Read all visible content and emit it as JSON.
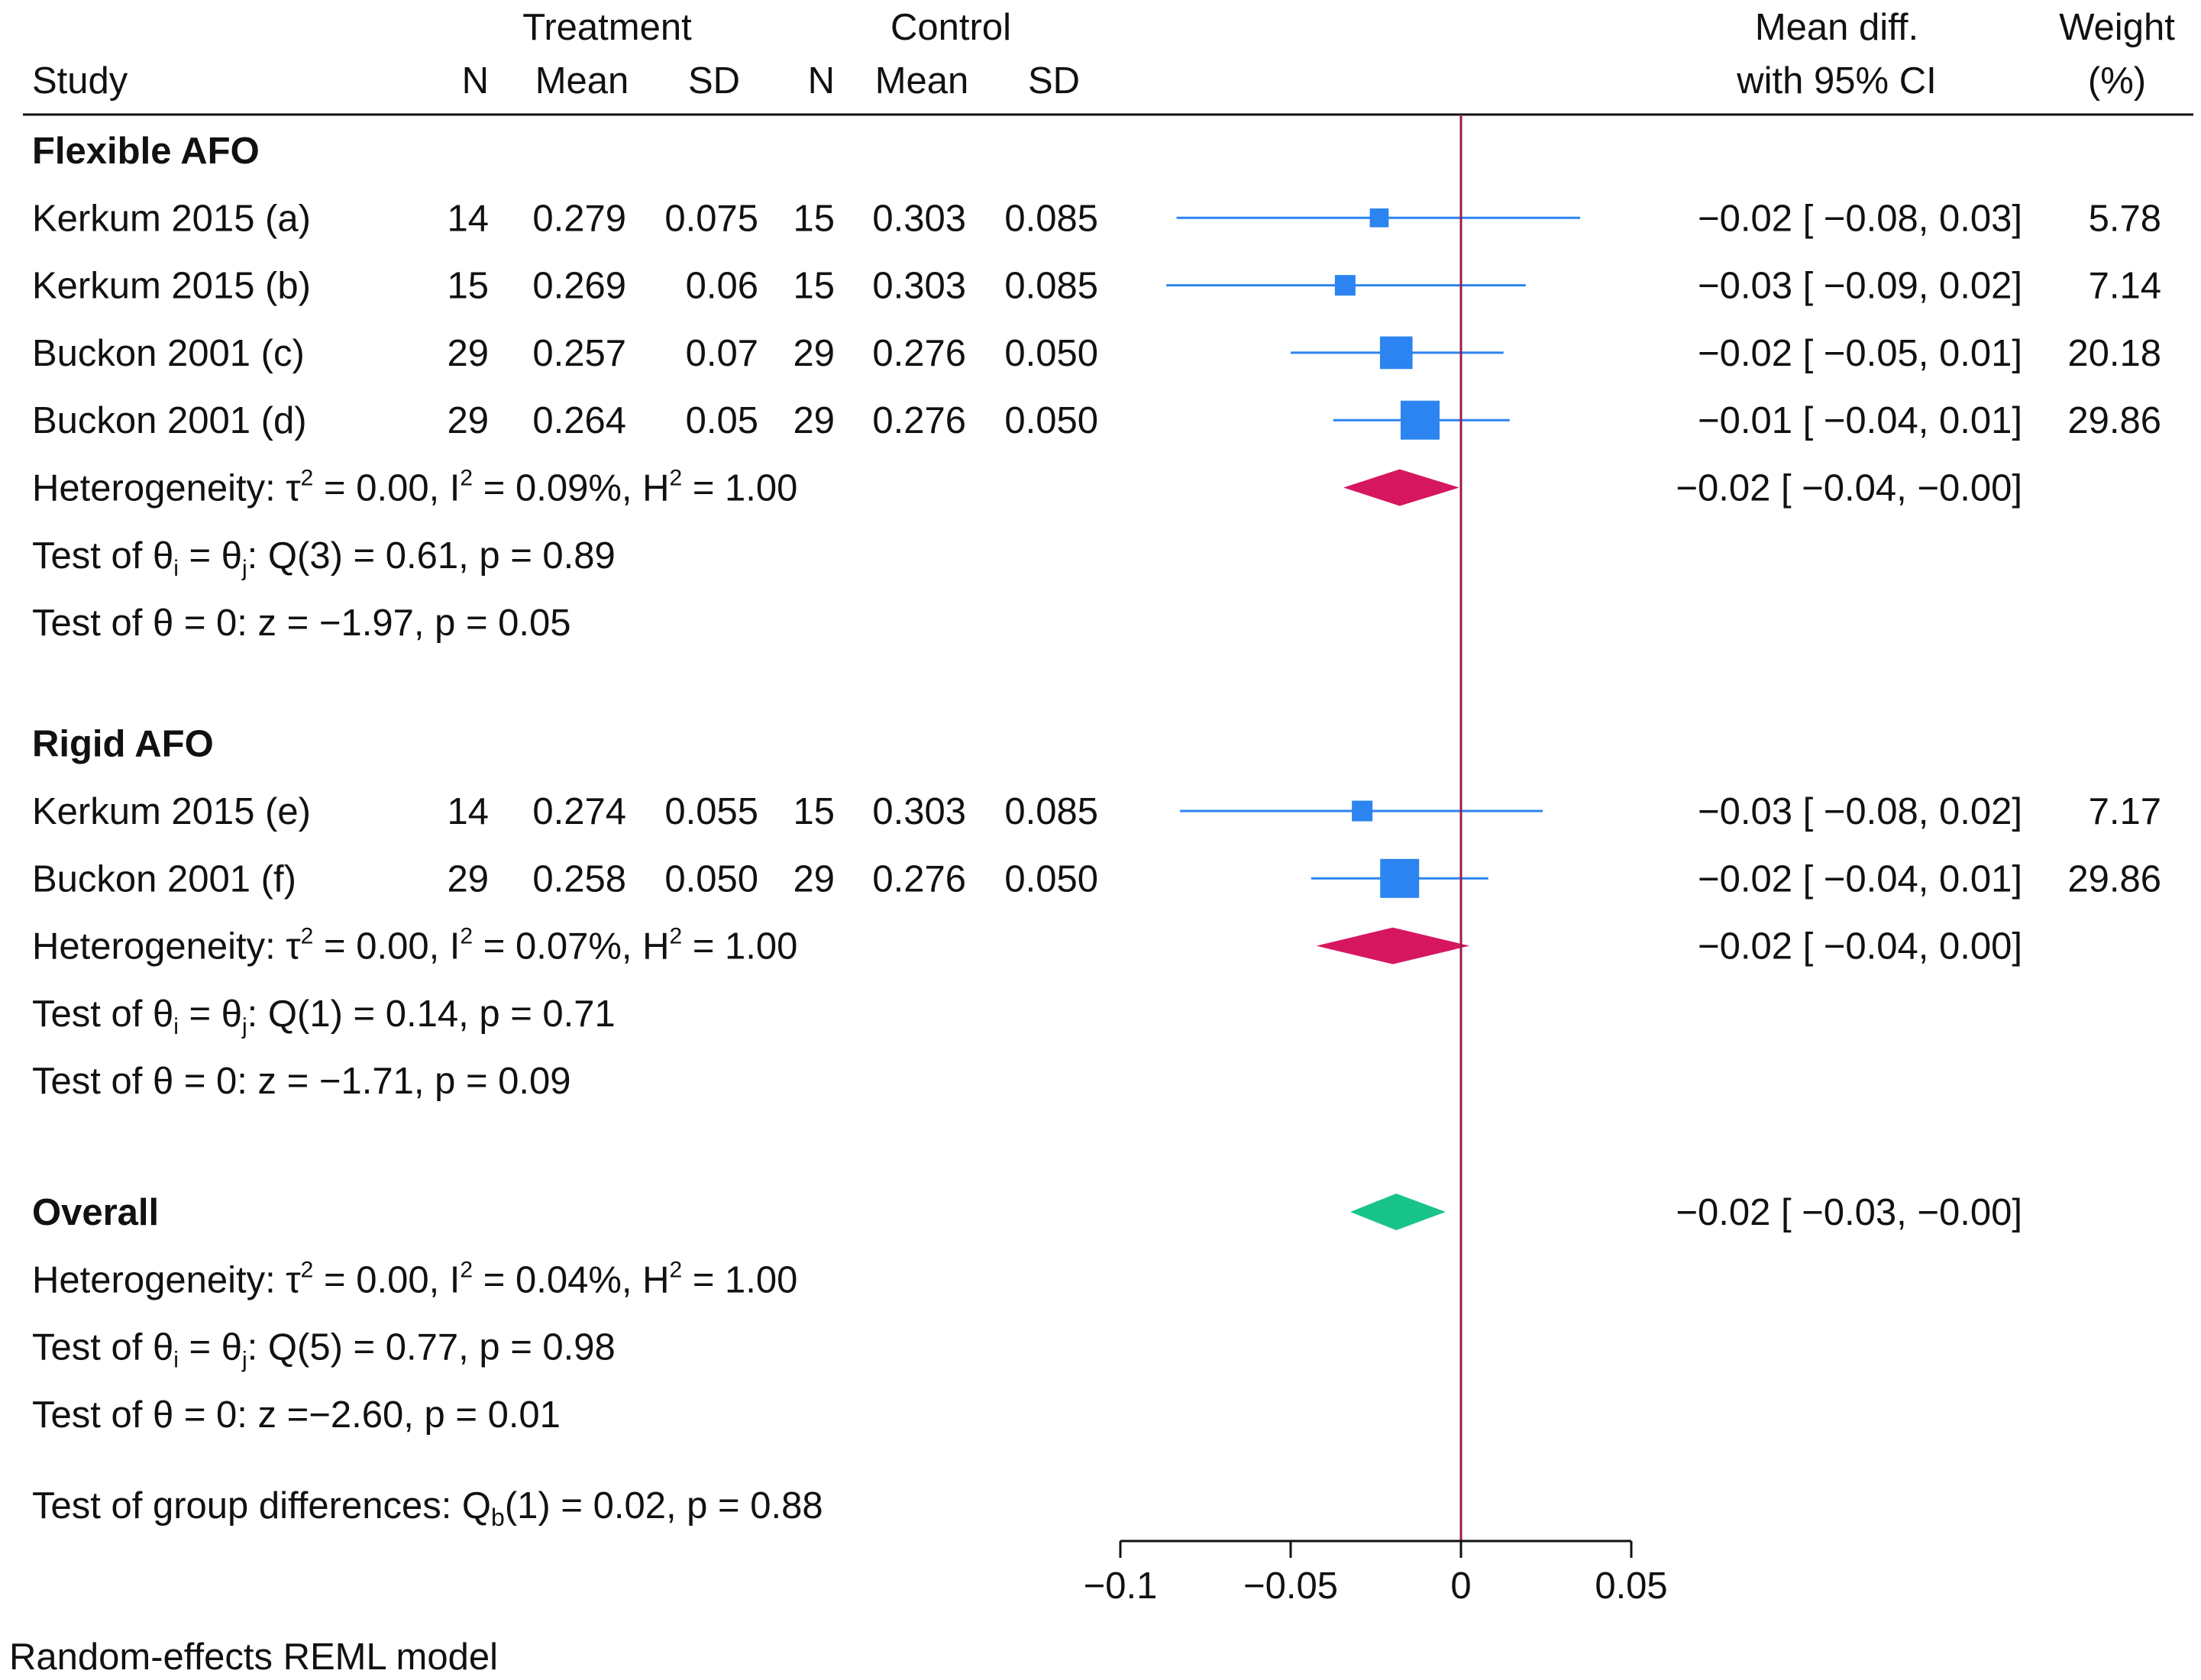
{
  "header": {
    "treatment": "Treatment",
    "control": "Control",
    "study": "Study",
    "n": "N",
    "mean": "Mean",
    "sd": "SD",
    "mean_diff_line1": "Mean diff.",
    "mean_diff_line2": "with 95% CI",
    "weight_line1": "Weight",
    "weight_line2": "(%)"
  },
  "footnote": "Random-effects REML model",
  "group_difference_test": {
    "prefix": "Test of group differences: Q",
    "sub": "b",
    "suffix": "(1) = 0.02, p = 0.88"
  },
  "colors": {
    "study_marker": "#2b84f0",
    "subgroup_diamond": "#d6175f",
    "overall_diamond": "#18c48a",
    "null_line": "#9b1b4a"
  },
  "chart_data": {
    "type": "forest",
    "x_axis": {
      "ticks": [
        -0.1,
        -0.05,
        0,
        0.05
      ],
      "tick_labels": [
        "−0.1",
        "−0.05",
        "0",
        "0.05"
      ],
      "xlim": [
        -0.1,
        0.05
      ],
      "null_value": 0
    },
    "groups": [
      {
        "name": "Flexible AFO",
        "studies": [
          {
            "label": "Kerkum 2015 (a)",
            "t_n": "14",
            "t_mean": "0.279",
            "t_sd": "0.075",
            "c_n": "15",
            "c_mean": "0.303",
            "c_sd": "0.085",
            "est": -0.024,
            "lo": -0.0835,
            "hi": 0.035,
            "weight": 5.78,
            "ci_text": "−0.02 [ −0.08,    0.03]",
            "weight_text": "5.78"
          },
          {
            "label": "Kerkum 2015 (b)",
            "t_n": "15",
            "t_mean": "0.269",
            "t_sd": "0.06",
            "c_n": "15",
            "c_mean": "0.303",
            "c_sd": "0.085",
            "est": -0.034,
            "lo": -0.0865,
            "hi": 0.019,
            "weight": 7.14,
            "ci_text": "−0.03 [ −0.09,    0.02]",
            "weight_text": "7.14"
          },
          {
            "label": "Buckon 2001 (c)",
            "t_n": "29",
            "t_mean": "0.257",
            "t_sd": "0.07",
            "c_n": "29",
            "c_mean": "0.276",
            "c_sd": "0.050",
            "est": -0.019,
            "lo": -0.05,
            "hi": 0.0125,
            "weight": 20.18,
            "ci_text": "−0.02 [ −0.05,    0.01]",
            "weight_text": "20.18"
          },
          {
            "label": "Buckon 2001 (d)",
            "t_n": "29",
            "t_mean": "0.264",
            "t_sd": "0.05",
            "c_n": "29",
            "c_mean": "0.276",
            "c_sd": "0.050",
            "est": -0.012,
            "lo": -0.0375,
            "hi": 0.0143,
            "weight": 29.86,
            "ci_text": "−0.01 [ −0.04,    0.01]",
            "weight_text": "29.86"
          }
        ],
        "pooled": {
          "est": -0.018,
          "lo": -0.0345,
          "hi": -0.0005,
          "ci_text": "−0.02 [ −0.04,  −0.00]"
        },
        "stats": [
          {
            "kind": "het",
            "tau": "0.00",
            "i2": "0.09%",
            "h2": "1.00"
          },
          {
            "kind": "q",
            "df_stat": "(3) = 0.61, p = 0.89"
          },
          {
            "kind": "z",
            "text": "Test of θ = 0: z = −1.97, p = 0.05"
          }
        ]
      },
      {
        "name": "Rigid AFO",
        "studies": [
          {
            "label": "Kerkum 2015 (e)",
            "t_n": "14",
            "t_mean": "0.274",
            "t_sd": "0.055",
            "c_n": "15",
            "c_mean": "0.303",
            "c_sd": "0.085",
            "est": -0.029,
            "lo": -0.0825,
            "hi": 0.024,
            "weight": 7.17,
            "ci_text": "−0.03 [ −0.08,    0.02]",
            "weight_text": "7.17"
          },
          {
            "label": "Buckon 2001 (f)",
            "t_n": "29",
            "t_mean": "0.258",
            "t_sd": "0.050",
            "c_n": "29",
            "c_mean": "0.276",
            "c_sd": "0.050",
            "est": -0.018,
            "lo": -0.044,
            "hi": 0.008,
            "weight": 29.86,
            "ci_text": "−0.02 [ −0.04,    0.01]",
            "weight_text": "29.86"
          }
        ],
        "pooled": {
          "est": -0.02,
          "lo": -0.0425,
          "hi": 0.0025,
          "ci_text": "−0.02 [ −0.04,    0.00]"
        },
        "stats": [
          {
            "kind": "het",
            "tau": "0.00",
            "i2": "0.07%",
            "h2": "1.00"
          },
          {
            "kind": "q",
            "df_stat": "(1) = 0.14, p = 0.71"
          },
          {
            "kind": "z",
            "text": "Test of θ = 0: z = −1.71, p = 0.09"
          }
        ]
      }
    ],
    "overall": {
      "name": "Overall",
      "est": -0.019,
      "lo": -0.0325,
      "hi": -0.0045,
      "ci_text": "−0.02 [ −0.03,  −0.00]",
      "stats": [
        {
          "kind": "het",
          "tau": "0.00",
          "i2": "0.04%",
          "h2": "1.00"
        },
        {
          "kind": "q",
          "df_stat": "(5) = 0.77, p = 0.98"
        },
        {
          "kind": "z",
          "text": "Test of θ = 0: z =−2.60, p = 0.01"
        }
      ]
    }
  }
}
